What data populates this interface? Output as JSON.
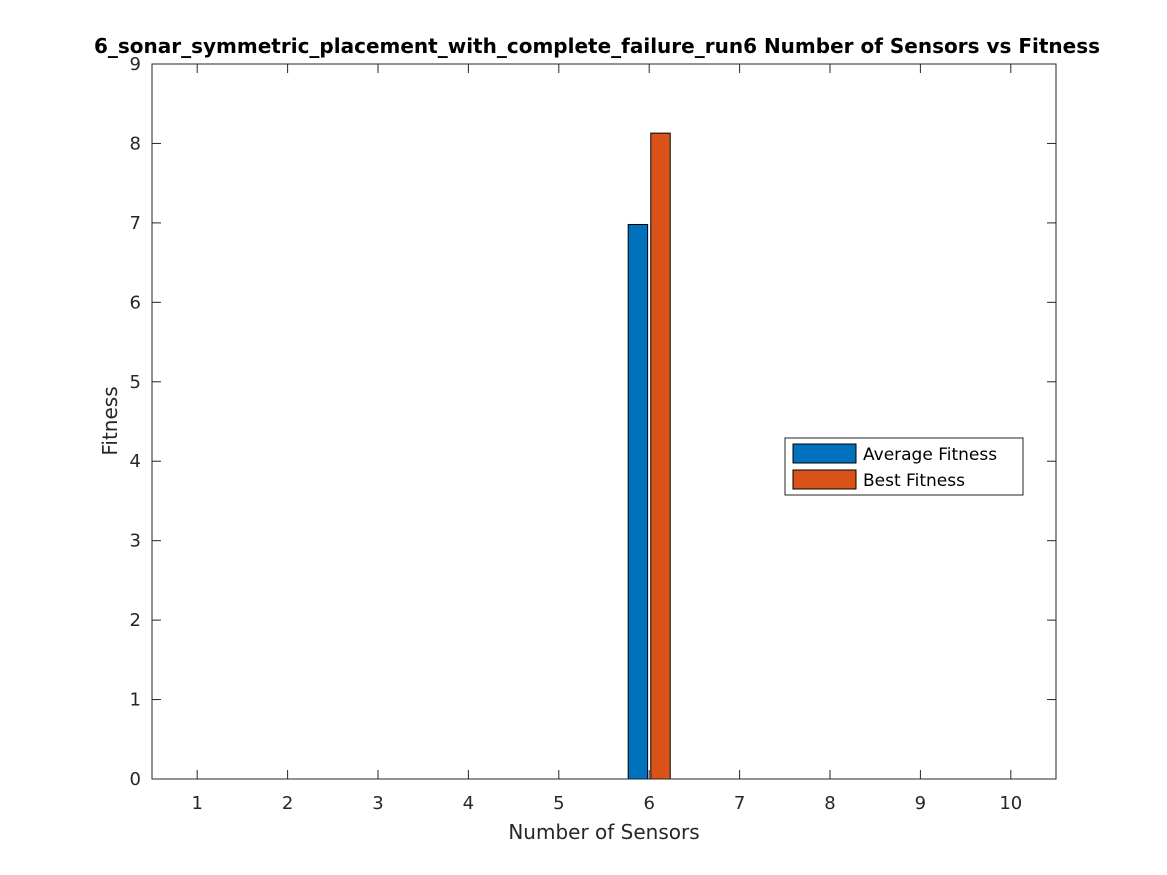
{
  "chart_data": {
    "type": "bar",
    "title": "6_sonar_symmetric_placement_with_complete_failure_run6 Number of Sensors vs Fitness",
    "xlabel": "Number of Sensors",
    "ylabel": "Fitness",
    "categories": [
      "1",
      "2",
      "3",
      "4",
      "5",
      "6",
      "7",
      "8",
      "9",
      "10"
    ],
    "series": [
      {
        "name": "Average Fitness",
        "color": "#0072BD",
        "values": [
          0,
          0,
          0,
          0,
          0,
          6.98,
          0,
          0,
          0,
          0
        ]
      },
      {
        "name": "Best Fitness",
        "color": "#D95319",
        "values": [
          0,
          0,
          0,
          0,
          0,
          8.13,
          0,
          0,
          0,
          0
        ]
      }
    ],
    "ylim": [
      0,
      9
    ],
    "xlim": [
      0.5,
      10.5
    ],
    "yticks": [
      "0",
      "1",
      "2",
      "3",
      "4",
      "5",
      "6",
      "7",
      "8",
      "9"
    ],
    "grid": false,
    "legend_position": "right"
  }
}
